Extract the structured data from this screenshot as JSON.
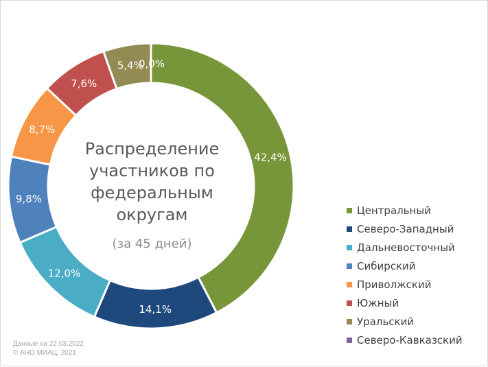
{
  "center_text": {
    "title": "Распределение участников по федеральным округам",
    "subtitle": "(за 45 дней)"
  },
  "footer": {
    "date": "Данные на 22.03.2022",
    "copyright": "© АНО МИАЦ, 2021"
  },
  "chart_data": {
    "type": "pie",
    "variant": "donut",
    "title": "Распределение участников по федеральным округам",
    "subtitle": "(за 45 дней)",
    "legend_position": "right",
    "slices": [
      {
        "name": "Центральный",
        "value": 42.4,
        "label": "42,4%",
        "color": "#77963a"
      },
      {
        "name": "Северо-Западный",
        "value": 14.1,
        "label": "14,1%",
        "color": "#1f497d"
      },
      {
        "name": "Дальневосточный",
        "value": 12.0,
        "label": "12,0%",
        "color": "#4bacc6"
      },
      {
        "name": "Сибирский",
        "value": 9.8,
        "label": "9,8%",
        "color": "#4f81bd"
      },
      {
        "name": "Приволжский",
        "value": 8.7,
        "label": "8,7%",
        "color": "#f79646"
      },
      {
        "name": "Южный",
        "value": 7.6,
        "label": "7,6%",
        "color": "#c0504d"
      },
      {
        "name": "Уральский",
        "value": 5.4,
        "label": "5,4%",
        "color": "#948a54"
      },
      {
        "name": "Северо-Кавказский",
        "value": 0.0,
        "label": "0,0%",
        "color": "#8064a2"
      }
    ]
  }
}
